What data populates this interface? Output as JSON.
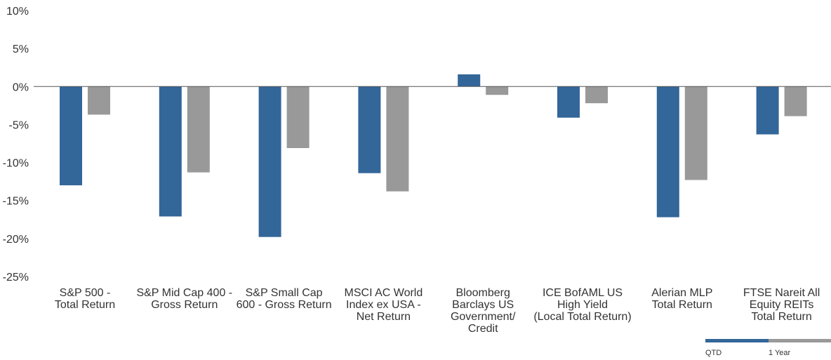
{
  "chart_data": {
    "type": "bar",
    "title": "",
    "xlabel": "",
    "ylabel": "",
    "ylim": [
      -25,
      10
    ],
    "yticks": [
      10,
      5,
      0,
      -5,
      -10,
      -15,
      -20,
      -25
    ],
    "ytick_labels": [
      "10%",
      "5%",
      "0%",
      "-5%",
      "-10%",
      "-15%",
      "-20%",
      "-25%"
    ],
    "grid": false,
    "legend_position": "bottom-right",
    "categories": [
      [
        "S&P 500 -",
        "Total Return"
      ],
      [
        "S&P Mid Cap 400 -",
        "Gross Return"
      ],
      [
        "S&P Small Cap",
        "600 - Gross Return"
      ],
      [
        "MSCI AC World",
        "Index ex USA -",
        "Net Return"
      ],
      [
        "Bloomberg",
        "Barclays US",
        "Government/",
        "Credit"
      ],
      [
        "ICE BofAML US",
        "High Yield",
        "(Local Total Return)"
      ],
      [
        "Alerian MLP",
        "Total Return"
      ],
      [
        "FTSE Nareit All",
        "Equity REITs",
        "Total Return"
      ]
    ],
    "series": [
      {
        "name": "QTD",
        "color": "#336699",
        "values": [
          -13.0,
          -17.1,
          -19.8,
          -11.4,
          1.6,
          -4.1,
          -17.2,
          -6.3
        ]
      },
      {
        "name": "1 Year",
        "color": "#999999",
        "values": [
          -3.7,
          -11.3,
          -8.1,
          -13.8,
          -1.1,
          -2.2,
          -12.3,
          -3.9
        ]
      }
    ]
  }
}
